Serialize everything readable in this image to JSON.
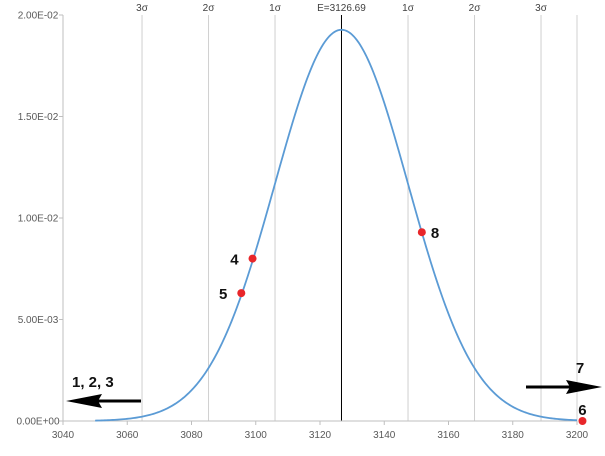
{
  "chart_data": {
    "type": "line",
    "title": "",
    "xlabel": "",
    "ylabel": "",
    "xlim": [
      3040,
      3200
    ],
    "ylim": [
      0,
      0.02
    ],
    "grid": "vertical lines at sigma marks",
    "legend": "none",
    "x_ticks": [
      {
        "value": 3040,
        "label": "3040"
      },
      {
        "value": 3060,
        "label": "3060"
      },
      {
        "value": 3080,
        "label": "3080"
      },
      {
        "value": 3100,
        "label": "3100"
      },
      {
        "value": 3120,
        "label": "3120"
      },
      {
        "value": 3140,
        "label": "3140"
      },
      {
        "value": 3160,
        "label": "3160"
      },
      {
        "value": 3180,
        "label": "3180"
      },
      {
        "value": 3200,
        "label": "3200"
      }
    ],
    "y_ticks": [
      {
        "value": 0.0,
        "label": "0.00E+00"
      },
      {
        "value": 0.005,
        "label": "5.00E-03"
      },
      {
        "value": 0.01,
        "label": "1.00E-02"
      },
      {
        "value": 0.015,
        "label": "1.50E-02"
      },
      {
        "value": 0.02,
        "label": "2.00E-02"
      }
    ],
    "distribution": {
      "name": "normal",
      "mean": 3126.69,
      "sigma": 20.7
    },
    "curve_domain": [
      3050,
      3200
    ],
    "mean_line": {
      "x": 3126.69,
      "label": "E=3126.69"
    },
    "sigma_lines": [
      {
        "x": 3064.6,
        "label": "3σ"
      },
      {
        "x": 3085.3,
        "label": "2σ"
      },
      {
        "x": 3106.0,
        "label": "1σ"
      },
      {
        "x": 3147.4,
        "label": "1σ"
      },
      {
        "x": 3168.1,
        "label": "2σ"
      },
      {
        "x": 3188.8,
        "label": "3σ"
      }
    ],
    "points": [
      {
        "label": "4",
        "x": 3099.0,
        "y": 0.008
      },
      {
        "label": "5",
        "x": 3095.5,
        "y": 0.0063
      },
      {
        "label": "8",
        "x": 3151.7,
        "y": 0.0093
      },
      {
        "label": "6",
        "x": 3201.7,
        "y": 0.0
      }
    ],
    "arrows": [
      {
        "label": "1, 2, 3",
        "direction": "left"
      },
      {
        "label": "7",
        "direction": "right"
      }
    ],
    "colors": {
      "curve": "#5b9bd5",
      "point": "#e8262a",
      "mean_line": "#000000",
      "grid": "#d0d0d0",
      "axis": "#bfbfbf",
      "arrow": "#000000"
    }
  }
}
